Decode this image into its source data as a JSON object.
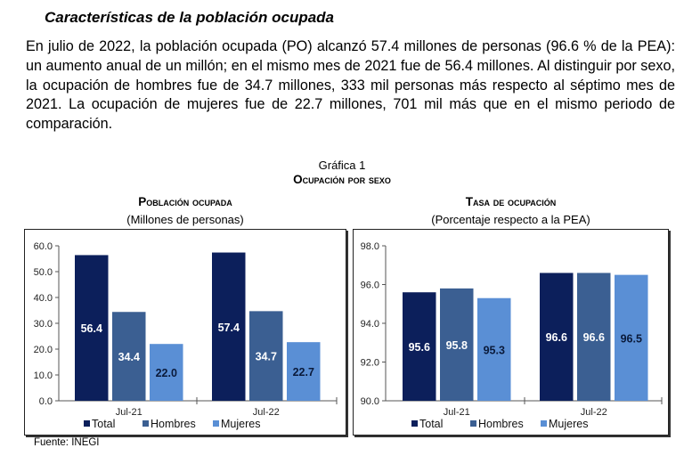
{
  "section_title": "Características de la población ocupada",
  "paragraph": "En julio de 2022, la población ocupada (PO) alcanzó 57.4 millones de personas (96.6 % de la PEA): un aumento anual de un millón; en el mismo mes de 2021 fue de 56.4 millones. Al distinguir por sexo, la ocupación de hombres fue de 34.7 millones, 333 mil personas más respecto al séptimo mes de 2021. La ocupación de mujeres fue de 22.7 millones, 701 mil más que en el mismo periodo de comparación.",
  "figure_label": "Gráfica 1",
  "figure_title": "Ocupación por sexo",
  "source": "Fuente: INEGI",
  "colors": {
    "Total": "#0c1f5b",
    "Hombres": "#3b5f92",
    "Mujeres": "#5a8fd5"
  },
  "chart_data": [
    {
      "type": "bar",
      "title": "Población ocupada",
      "subtitle": "(Millones de personas)",
      "categories": [
        "Jul-21",
        "Jul-22"
      ],
      "series": [
        {
          "name": "Total",
          "values": [
            56.4,
            57.4
          ]
        },
        {
          "name": "Hombres",
          "values": [
            34.4,
            34.7
          ]
        },
        {
          "name": "Mujeres",
          "values": [
            22.0,
            22.7
          ]
        }
      ],
      "ylim": [
        0,
        60
      ],
      "yticks": [
        "0.0",
        "10.0",
        "20.0",
        "30.0",
        "40.0",
        "50.0",
        "60.0"
      ],
      "grid": false,
      "legend": "bottom"
    },
    {
      "type": "bar",
      "title": "Tasa de ocupación",
      "subtitle": "(Porcentaje respecto a la PEA)",
      "categories": [
        "Jul-21",
        "Jul-22"
      ],
      "series": [
        {
          "name": "Total",
          "values": [
            95.6,
            96.6
          ]
        },
        {
          "name": "Hombres",
          "values": [
            95.8,
            96.6
          ]
        },
        {
          "name": "Mujeres",
          "values": [
            95.3,
            96.5
          ]
        }
      ],
      "ylim": [
        90,
        98
      ],
      "yticks": [
        "90.0",
        "92.0",
        "94.0",
        "96.0",
        "98.0"
      ],
      "grid": false,
      "legend": "bottom"
    }
  ]
}
